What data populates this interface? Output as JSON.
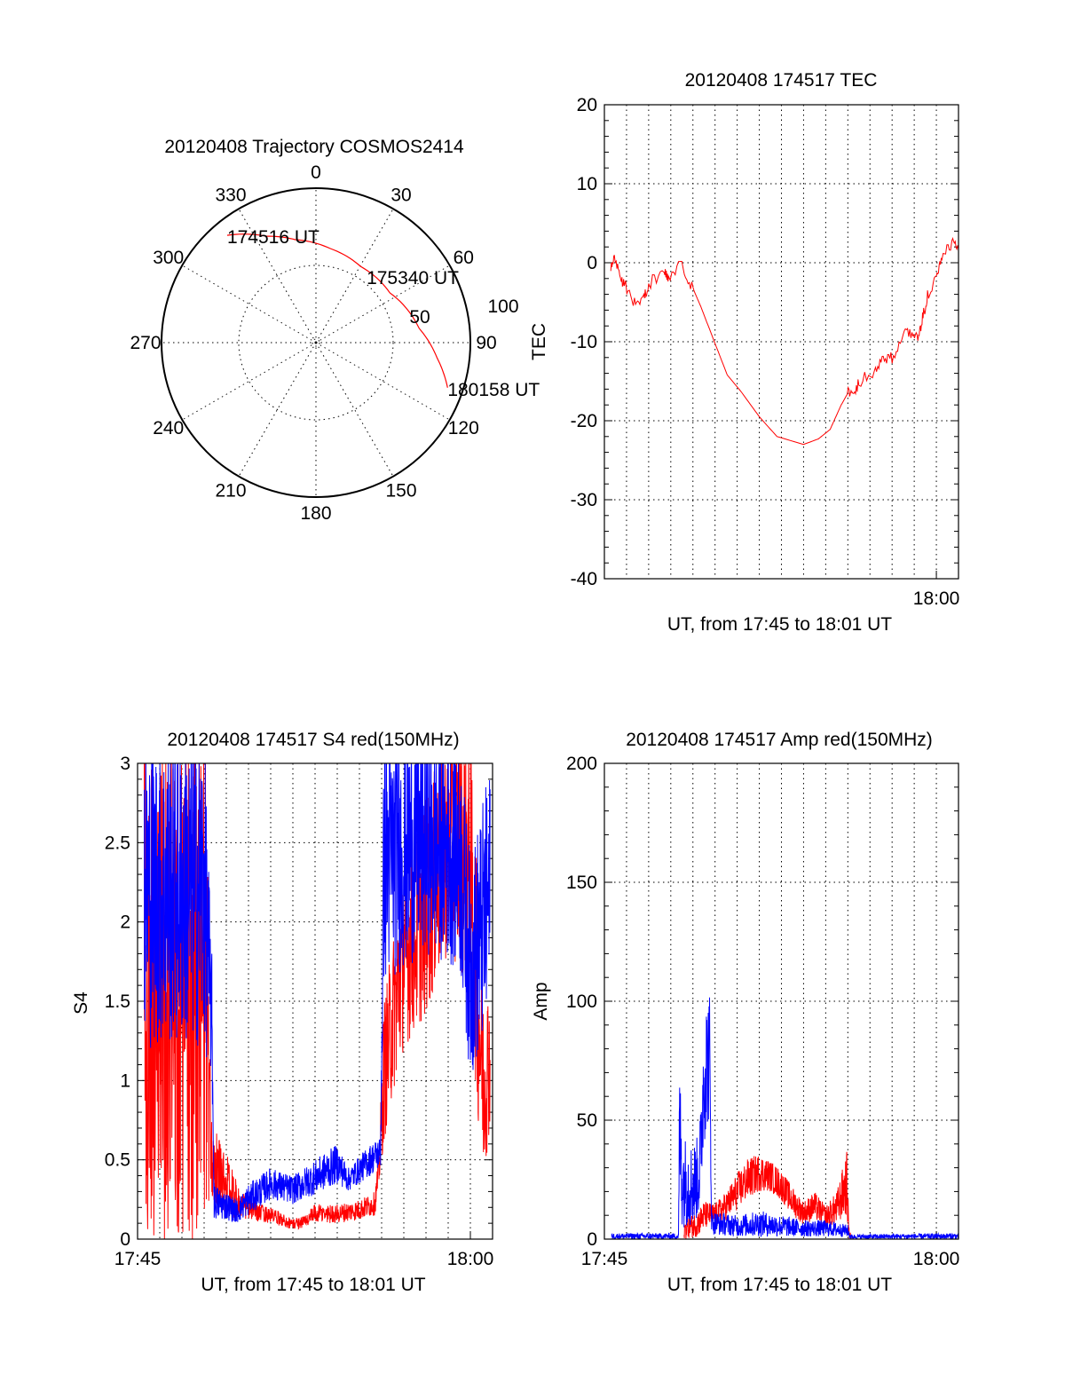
{
  "chart_data": [
    {
      "type": "polar",
      "title": "20120408 Trajectory COSMOS2414",
      "angle_labels": [
        "0",
        "30",
        "60",
        "90",
        "120",
        "150",
        "180",
        "210",
        "240",
        "270",
        "300",
        "330"
      ],
      "radial_labels": [
        "50",
        "100"
      ],
      "rlim": [
        0,
        100
      ],
      "grid": true,
      "trajectory_color": "#ff0000",
      "trajectory": [
        {
          "az": 320.4,
          "r": 90.2
        },
        {
          "az": 335.0,
          "r": 76.0
        },
        {
          "az": 348.6,
          "r": 68.0
        },
        {
          "az": 8.7,
          "r": 61.6
        },
        {
          "az": 30.2,
          "r": 57.2
        },
        {
          "az": 56.1,
          "r": 57.7
        },
        {
          "az": 82.2,
          "r": 67.5
        },
        {
          "az": 97.1,
          "r": 79.0
        },
        {
          "az": 108.9,
          "r": 90.1
        }
      ],
      "annotations": [
        {
          "label": "174516 UT",
          "az": 320.4,
          "r": 90.2
        },
        {
          "label": "175340 UT",
          "az": 30.2,
          "r": 57.2
        },
        {
          "label": "180158 UT",
          "az": 108.9,
          "r": 90.1
        }
      ]
    },
    {
      "type": "line",
      "title": "20120408 174517 TEC",
      "xlabel": "UT, from 17:45 to 18:01 UT",
      "ylabel": "TEC",
      "x_units": "minutes after 17:45",
      "xlim": [
        0,
        16
      ],
      "ylim": [
        -40,
        20
      ],
      "yticks": [
        "20",
        "10",
        "0",
        "-10",
        "-20",
        "-30",
        "-40"
      ],
      "ytick_values": [
        20,
        10,
        0,
        -10,
        -20,
        -30,
        -40
      ],
      "xticks": [
        {
          "t": 15,
          "label": "18:00"
        }
      ],
      "grid": true,
      "series": [
        {
          "name": "TEC",
          "color": "#ff0000",
          "x": [
            0.29,
            0.5,
            0.76,
            0.9,
            1.36,
            1.75,
            2.0,
            2.7,
            2.9,
            3.5,
            3.95,
            4.35,
            4.9,
            5.55,
            6.2,
            7.0,
            7.8,
            9.0,
            9.67,
            10.2,
            10.7,
            11.06,
            11.2,
            11.5,
            12.2,
            12.6,
            13.0,
            13.5,
            13.9,
            14.2,
            14.4,
            14.6,
            15.0,
            15.25,
            15.7,
            16.0
          ],
          "y": [
            -0.5,
            0.6,
            -2,
            -2.5,
            -5.1,
            -4.7,
            -2.7,
            -1.1,
            -2,
            -0.2,
            -2.9,
            -5.5,
            -9.5,
            -14.2,
            -16.4,
            -19.5,
            -22,
            -23,
            -22.3,
            -21.1,
            -18,
            -16.2,
            -16.9,
            -15.1,
            -13.6,
            -12,
            -12,
            -9.3,
            -8.7,
            -9.6,
            -6.7,
            -4.2,
            -2,
            0.4,
            2.6,
            1.7
          ],
          "noisy_ranges": [
            [
              0,
              4
            ],
            [
              11,
              16
            ]
          ]
        }
      ]
    },
    {
      "type": "line",
      "title": "20120408 174517 S4 red(150MHz)",
      "xlabel": "UT, from 17:45 to 18:01 UT",
      "ylabel": "S4",
      "x_units": "minutes after 17:45",
      "xlim": [
        0,
        16
      ],
      "ylim": [
        0,
        3
      ],
      "yticks": [
        "3",
        "2.5",
        "2",
        "1.5",
        "1",
        "0.5",
        "0"
      ],
      "ytick_values": [
        3,
        2.5,
        2,
        1.5,
        1,
        0.5,
        0
      ],
      "xticks": [
        {
          "t": 0,
          "label": "17:45"
        },
        {
          "t": 15,
          "label": "18:00"
        }
      ],
      "grid": true,
      "series": [
        {
          "name": "red",
          "color": "#ff0000",
          "envelope": [
            [
              0.3,
              0,
              3.2
            ],
            [
              3.1,
              0,
              3.2
            ],
            [
              3.3,
              0.25,
              0.75
            ],
            [
              4.0,
              0.15,
              0.55
            ],
            [
              4.5,
              0.12,
              0.35
            ],
            [
              5.0,
              0.12,
              0.25
            ],
            [
              6.0,
              0.1,
              0.2
            ],
            [
              7.0,
              0.06,
              0.13
            ],
            [
              7.5,
              0.07,
              0.15
            ],
            [
              8.0,
              0.1,
              0.22
            ],
            [
              9.0,
              0.1,
              0.22
            ],
            [
              10.0,
              0.12,
              0.25
            ],
            [
              10.7,
              0.15,
              0.3
            ],
            [
              10.9,
              0.35,
              0.6
            ],
            [
              11.1,
              0.6,
              1.5
            ],
            [
              11.5,
              0.9,
              1.9
            ],
            [
              12.0,
              1.2,
              2.3
            ],
            [
              13.0,
              1.4,
              2.8
            ],
            [
              14.0,
              1.8,
              3.2
            ],
            [
              15.0,
              1.6,
              3.2
            ],
            [
              15.3,
              0.8,
              2.3
            ],
            [
              15.6,
              0.4,
              1.5
            ],
            [
              15.9,
              0.7,
              1.7
            ]
          ]
        },
        {
          "name": "blue",
          "color": "#0000ff",
          "envelope": [
            [
              0.3,
              1.2,
              3.2
            ],
            [
              3.0,
              1.2,
              3.2
            ],
            [
              3.35,
              1.0,
              1.8
            ],
            [
              3.45,
              0.12,
              0.35
            ],
            [
              4.0,
              0.12,
              0.3
            ],
            [
              4.5,
              0.1,
              0.25
            ],
            [
              5.0,
              0.15,
              0.35
            ],
            [
              6.0,
              0.25,
              0.45
            ],
            [
              7.0,
              0.22,
              0.4
            ],
            [
              8.0,
              0.28,
              0.5
            ],
            [
              9.0,
              0.35,
              0.6
            ],
            [
              9.5,
              0.3,
              0.45
            ],
            [
              10.5,
              0.4,
              0.6
            ],
            [
              10.95,
              0.45,
              0.65
            ],
            [
              11.1,
              1.6,
              3.2
            ],
            [
              13.0,
              1.8,
              3.2
            ],
            [
              14.5,
              1.7,
              3.2
            ],
            [
              15.0,
              1.0,
              2.4
            ],
            [
              15.9,
              1.3,
              3.0
            ]
          ]
        }
      ]
    },
    {
      "type": "line",
      "title": "20120408 174517 Amp red(150MHz)",
      "xlabel": "UT, from 17:45 to 18:01 UT",
      "ylabel": "Amp",
      "x_units": "minutes after 17:45",
      "xlim": [
        0,
        16
      ],
      "ylim": [
        0,
        200
      ],
      "yticks": [
        "200",
        "150",
        "100",
        "50",
        "0"
      ],
      "ytick_values": [
        200,
        150,
        100,
        50,
        0
      ],
      "xticks": [
        {
          "t": 0,
          "label": "17:45"
        },
        {
          "t": 15,
          "label": "18:00"
        }
      ],
      "grid": true,
      "series": [
        {
          "name": "red",
          "color": "#ff0000",
          "envelope": [
            [
              3.6,
              0,
              8
            ],
            [
              4.2,
              1,
              12
            ],
            [
              4.5,
              4,
              16
            ],
            [
              5.0,
              6,
              15
            ],
            [
              5.5,
              8,
              20
            ],
            [
              6.0,
              12,
              28
            ],
            [
              6.5,
              17,
              34
            ],
            [
              7.0,
              20,
              36
            ],
            [
              7.5,
              20,
              33
            ],
            [
              8.0,
              16,
              29
            ],
            [
              8.5,
              10,
              22
            ],
            [
              9.0,
              6,
              16
            ],
            [
              9.5,
              8,
              20
            ],
            [
              10.0,
              5,
              14
            ],
            [
              10.5,
              6,
              20
            ],
            [
              10.95,
              10,
              37
            ],
            [
              11.05,
              0,
              5
            ],
            [
              11.2,
              0,
              1
            ]
          ]
        },
        {
          "name": "blue",
          "color": "#0000ff",
          "envelope": [
            [
              0.33,
              0,
              2.5
            ],
            [
              3.35,
              0,
              2.5
            ],
            [
              3.4,
              20,
              78
            ],
            [
              3.5,
              5,
              45
            ],
            [
              4.0,
              5,
              40
            ],
            [
              4.3,
              10,
              45
            ],
            [
              4.5,
              40,
              100
            ],
            [
              4.75,
              50,
              105
            ],
            [
              4.85,
              2,
              12
            ],
            [
              6.0,
              1,
              10
            ],
            [
              7.0,
              1,
              12
            ],
            [
              8.0,
              1,
              10
            ],
            [
              9.0,
              1,
              8
            ],
            [
              10.0,
              1,
              8
            ],
            [
              11.0,
              1,
              6
            ],
            [
              11.1,
              0,
              2
            ],
            [
              16.0,
              0,
              2.5
            ]
          ]
        }
      ]
    }
  ]
}
